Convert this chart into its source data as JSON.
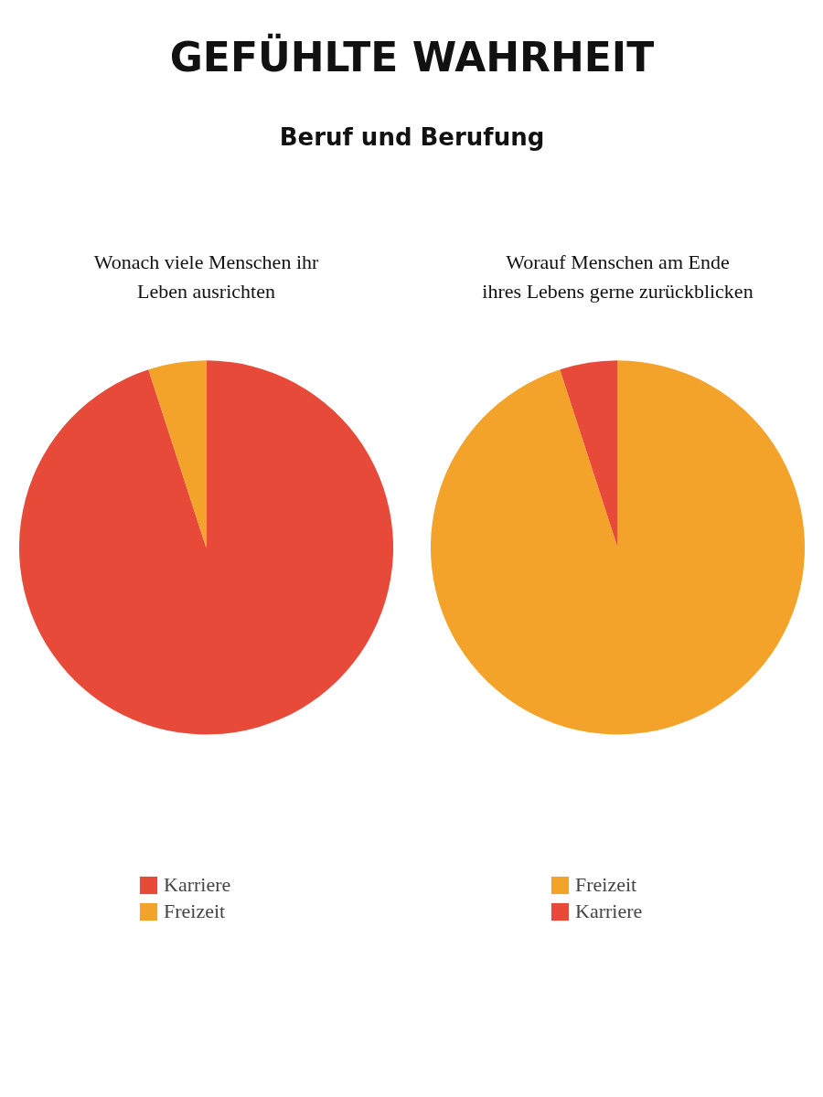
{
  "chart_data": [
    {
      "type": "other",
      "title": "GEFÜHLTE WAHRHEIT",
      "subtitle": "Beruf und Berufung"
    },
    {
      "type": "pie",
      "title": "Wonach viele Menschen ihr\nLeben ausrichten",
      "categories": [
        "Karriere",
        "Freizeit"
      ],
      "values": [
        95,
        5
      ],
      "colors": [
        "#e84a3a",
        "#f3a32a"
      ],
      "legend": "bottom"
    },
    {
      "type": "pie",
      "title": "Worauf Menschen am Ende\nihres Lebens gerne zurückblicken",
      "categories": [
        "Freizeit",
        "Karriere"
      ],
      "values": [
        95,
        5
      ],
      "colors": [
        "#f3a32a",
        "#e84a3a"
      ],
      "legend": "bottom"
    }
  ]
}
